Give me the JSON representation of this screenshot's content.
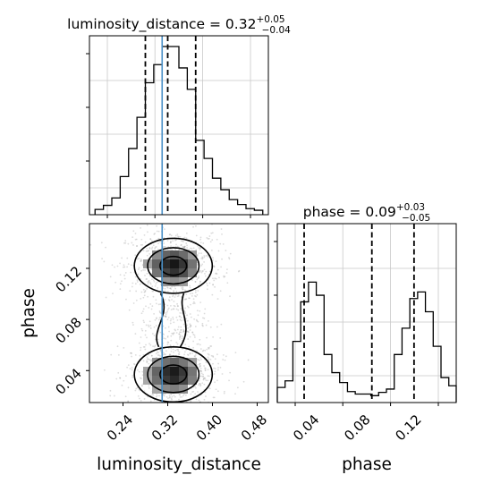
{
  "chart_data": [
    {
      "type": "histogram",
      "panel": "luminosity_distance marginal",
      "title": {
        "main": "luminosity_distance = 0.32",
        "sup": "+0.05",
        "sub": "−0.04"
      },
      "xlim": [
        0.18,
        0.5
      ],
      "bins": [
        0.19,
        0.205,
        0.22,
        0.235,
        0.25,
        0.265,
        0.28,
        0.295,
        0.31,
        0.325,
        0.34,
        0.355,
        0.37,
        0.385,
        0.4,
        0.415,
        0.43,
        0.445,
        0.46,
        0.475,
        0.49
      ],
      "heights": [
        0.01,
        0.035,
        0.08,
        0.21,
        0.38,
        0.57,
        0.78,
        0.89,
        1.0,
        1.0,
        0.87,
        0.74,
        0.43,
        0.32,
        0.2,
        0.13,
        0.07,
        0.04,
        0.015,
        0.005
      ],
      "quantiles": [
        0.28,
        0.32,
        0.37
      ],
      "truth": 0.31,
      "grid": true
    },
    {
      "type": "histogram",
      "panel": "phase marginal",
      "title": {
        "main": "phase = 0.09",
        "sup": "+0.03",
        "sub": "−0.05"
      },
      "xlim": [
        0.015,
        0.155
      ],
      "bins": [
        0.015,
        0.0211,
        0.0272,
        0.0333,
        0.0394,
        0.0455,
        0.0516,
        0.0577,
        0.0638,
        0.0699,
        0.076,
        0.0821,
        0.0882,
        0.0943,
        0.1004,
        0.1065,
        0.1126,
        0.1187,
        0.1248,
        0.1309,
        0.137,
        0.1431,
        0.1492,
        0.155
      ],
      "heights": [
        0.07,
        0.11,
        0.35,
        0.59,
        0.71,
        0.63,
        0.27,
        0.16,
        0.1,
        0.045,
        0.03,
        0.03,
        0.02,
        0.04,
        0.06,
        0.27,
        0.43,
        0.61,
        0.65,
        0.53,
        0.32,
        0.13,
        0.08
      ],
      "quantiles": [
        0.036,
        0.089,
        0.122
      ],
      "xticks": [
        "0.04",
        "0.08",
        "0.12"
      ],
      "xlabel": "phase",
      "grid": true
    },
    {
      "type": "contour",
      "panel": "luminosity_distance vs phase",
      "xlim": [
        0.18,
        0.5
      ],
      "ylim": [
        0.015,
        0.155
      ],
      "truth_x": 0.31,
      "modes": [
        {
          "cx": 0.33,
          "cy": 0.037,
          "sx": 0.034,
          "sy": 0.0105
        },
        {
          "cx": 0.33,
          "cy": 0.122,
          "sx": 0.034,
          "sy": 0.0105
        }
      ],
      "xticks": [
        "0.24",
        "0.32",
        "0.40",
        "0.48"
      ],
      "yticks": [
        "0.04",
        "0.08",
        "0.12"
      ],
      "xlabel": "luminosity_distance",
      "ylabel": "phase",
      "grid": false
    }
  ]
}
